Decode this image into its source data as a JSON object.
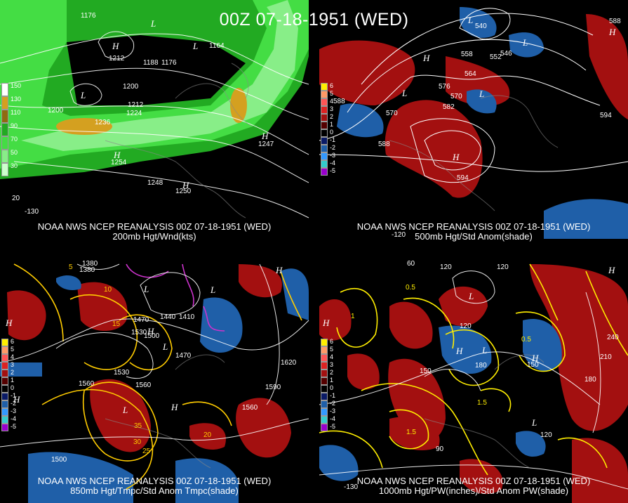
{
  "title": "00Z 07-18-1951 (WED)",
  "panels": [
    {
      "caption_line1": "NOAA NWS NCEP REANALYSIS 00Z 07-18-1951 (WED)",
      "caption_line2": "200mb Hgt/Wnd(kts)",
      "legend_labels": [
        "150",
        "130",
        "110",
        "90",
        "70",
        "50",
        "30"
      ],
      "contour_labels": [
        "1176",
        "1176",
        "1164",
        "1188",
        "1212",
        "1200",
        "1212",
        "1224",
        "1236",
        "1200",
        "1248",
        "1254",
        "1250",
        "1247",
        "20",
        "-130"
      ],
      "colors": {
        "shade_light": "#33cc33",
        "shade_dark": "#119911",
        "shade_hot": "#d4a020"
      }
    },
    {
      "caption_line1": "NOAA NWS NCEP REANALYSIS 00Z 07-18-1951 (WED)",
      "caption_line2": "500mb Hgt/Std Anom(shade)",
      "legend_labels": [
        "6",
        "5",
        "4",
        "3",
        "2",
        "1",
        "0",
        "-1",
        "-2",
        "-3",
        "-4",
        "-5"
      ],
      "contour_labels": [
        "588",
        "576",
        "582",
        "570",
        "564",
        "558",
        "552",
        "546",
        "540",
        "570",
        "588",
        "594",
        "594",
        "588",
        "-120"
      ],
      "colors": {
        "pos": "#a31010",
        "neg": "#1f5fa8"
      }
    },
    {
      "caption_line1": "NOAA NWS NCEP REANALYSIS 00Z 07-18-1951 (WED)",
      "caption_line2": "850mb Hgt/Tmpc/Std Anom Tmpc(shade)",
      "legend_labels": [
        "6",
        "5",
        "4",
        "3",
        "2",
        "1",
        "0",
        "-1",
        "-2",
        "-3",
        "-4",
        "-5"
      ],
      "contour_labels": [
        "1380",
        "1470",
        "1530",
        "1500",
        "1440",
        "1410",
        "1470",
        "1560",
        "1530",
        "1560",
        "1620",
        "1590",
        "1560",
        "1500",
        "1380",
        "10",
        "15",
        "20",
        "25",
        "30",
        "35",
        "5"
      ],
      "colors": {
        "pos": "#a31010",
        "neg": "#1f5fa8",
        "temp": "#ffcc00",
        "cold": "#cc33cc"
      }
    },
    {
      "caption_line1": "NOAA NWS NCEP REANALYSIS 00Z 07-18-1951 (WED)",
      "caption_line2": "1000mb Hgt/PW(inches)/Std Anom PW(shade)",
      "legend_labels": [
        "6",
        "5",
        "4",
        "3",
        "2",
        "1",
        "0",
        "-1",
        "-2",
        "-3",
        "-4",
        "-5"
      ],
      "contour_labels": [
        "60",
        "120",
        "120",
        "0.5",
        "1",
        "1.5",
        "150",
        "180",
        "120",
        "150",
        "180",
        "210",
        "240",
        "90",
        "120",
        "1.5",
        "0.5",
        "-130"
      ],
      "colors": {
        "pos": "#a31010",
        "neg": "#1f5fa8",
        "pw": "#ffee00"
      }
    }
  ],
  "legend_colors": {
    "jet": [
      "#ffffff",
      "#d4a020",
      "#8f6a10",
      "#22aa22",
      "#44dd44",
      "#88ee88",
      "#ccffcc"
    ],
    "anom": [
      "#ffee00",
      "#ff9966",
      "#ff5555",
      "#dd2222",
      "#a31010",
      "#550000",
      "#000000",
      "#0a1a66",
      "#1f5fa8",
      "#3399ff",
      "#33cccc",
      "#9900cc"
    ]
  }
}
